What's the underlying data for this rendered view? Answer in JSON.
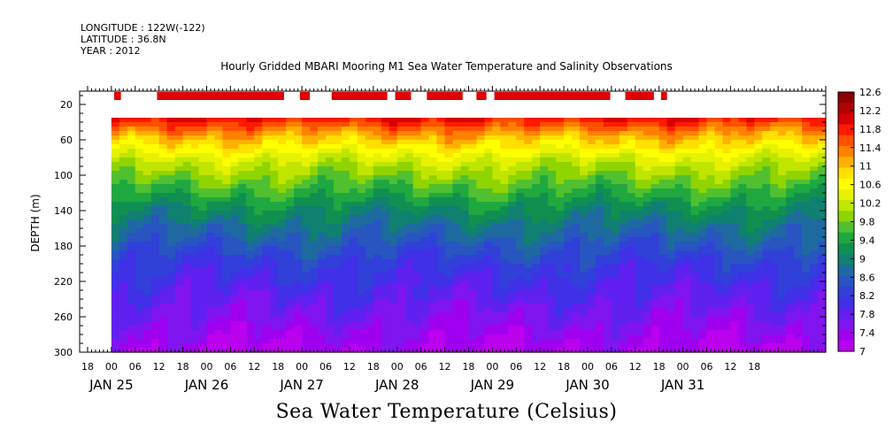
{
  "header": {
    "longitude": "LONGITUDE : 122W(-122)",
    "latitude": "LATITUDE : 36.8N",
    "year": "YEAR : 2012"
  },
  "chart_data": {
    "type": "heatmap",
    "title": "Hourly Gridded MBARI Mooring M1 Sea Water Temperature and Salinity Observations",
    "xlabel": "Sea Water Temperature (Celsius)",
    "ylabel": "DEPTH (m)",
    "y_ticks": [
      20,
      60,
      100,
      140,
      180,
      220,
      260,
      300
    ],
    "ylim": [
      300,
      5
    ],
    "y_inverted": true,
    "data_depth_range": [
      35,
      300
    ],
    "x_hour_tick_labels": [
      "18",
      "00",
      "06",
      "12",
      "18",
      "00",
      "06",
      "12",
      "18",
      "00",
      "06",
      "12",
      "18",
      "00",
      "06",
      "12",
      "18",
      "00",
      "06",
      "12",
      "18",
      "00",
      "06",
      "12",
      "18",
      "00",
      "06",
      "12",
      "18"
    ],
    "x_day_labels": [
      "JAN 25",
      "JAN 26",
      "JAN 27",
      "JAN 28",
      "JAN 29",
      "JAN 30",
      "JAN 31"
    ],
    "x_range_hours_from_jan25_00": [
      -8,
      180
    ],
    "colorbar": {
      "labels": [
        "12.6",
        "12.2",
        "11.8",
        "11.4",
        "11",
        "10.6",
        "10.2",
        "9.8",
        "9.4",
        "9",
        "8.6",
        "8.2",
        "7.8",
        "7.4",
        "7"
      ],
      "min": 7,
      "max": 12.6,
      "colors": [
        "#8b0000",
        "#b40000",
        "#d80000",
        "#ff1a00",
        "#ff5000",
        "#ff8000",
        "#ffb000",
        "#ffe000",
        "#ffff00",
        "#e6f200",
        "#c0e600",
        "#90d400",
        "#50c030",
        "#20a840",
        "#109050",
        "#108070",
        "#1e6aa0",
        "#2855c0",
        "#3040d8",
        "#4030e8",
        "#6020f0",
        "#8015f0",
        "#a000f0",
        "#bb00ee"
      ]
    },
    "surface_markers_hours": [
      [
        0.7,
        2.4
      ],
      [
        11.5,
        43.5
      ],
      [
        47.5,
        50
      ],
      [
        55.5,
        69.5
      ],
      [
        71.5,
        75.5
      ],
      [
        79.5,
        88.5
      ],
      [
        92,
        94.5
      ],
      [
        96.5,
        125.7
      ],
      [
        129.5,
        136.7
      ],
      [
        138.5,
        140
      ]
    ],
    "temperature_profile": {
      "depth": [
        35,
        45,
        55,
        65,
        75,
        85,
        100,
        120,
        140,
        160,
        180,
        200,
        220,
        240,
        260,
        280,
        300
      ],
      "temp": [
        11.9,
        11.5,
        11.1,
        10.8,
        10.5,
        10.2,
        9.9,
        9.5,
        9.1,
        8.8,
        8.5,
        8.2,
        8.0,
        7.8,
        7.6,
        7.4,
        7.2
      ]
    }
  }
}
